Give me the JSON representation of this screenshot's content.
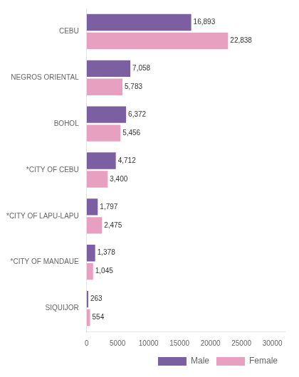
{
  "chart_data": {
    "type": "bar",
    "orientation": "horizontal",
    "categories": [
      "CEBU",
      "NEGROS ORIENTAL",
      "BOHOL",
      "*CITY OF CEBU",
      "*CITY OF LAPU-LAPU",
      "*CITY OF MANDAUE",
      "SIQUIJOR"
    ],
    "series": [
      {
        "name": "Male",
        "color": "#7b5fa0",
        "values": [
          16893,
          7058,
          6372,
          4712,
          1797,
          1378,
          263
        ],
        "value_labels": [
          "16,893",
          "7,058",
          "6,372",
          "4,712",
          "1,797",
          "1,378",
          "263"
        ]
      },
      {
        "name": "Female",
        "color": "#e8a0c0",
        "values": [
          22838,
          5783,
          5456,
          3400,
          2475,
          1045,
          554
        ],
        "value_labels": [
          "22,838",
          "5,783",
          "5,456",
          "3,400",
          "2,475",
          "1,045",
          "554"
        ]
      }
    ],
    "xlim": [
      0,
      32000
    ],
    "xticks": [
      0,
      5000,
      10000,
      15000,
      20000,
      25000,
      30000
    ],
    "grid": false,
    "legend": "lower right",
    "data_labels": true
  }
}
